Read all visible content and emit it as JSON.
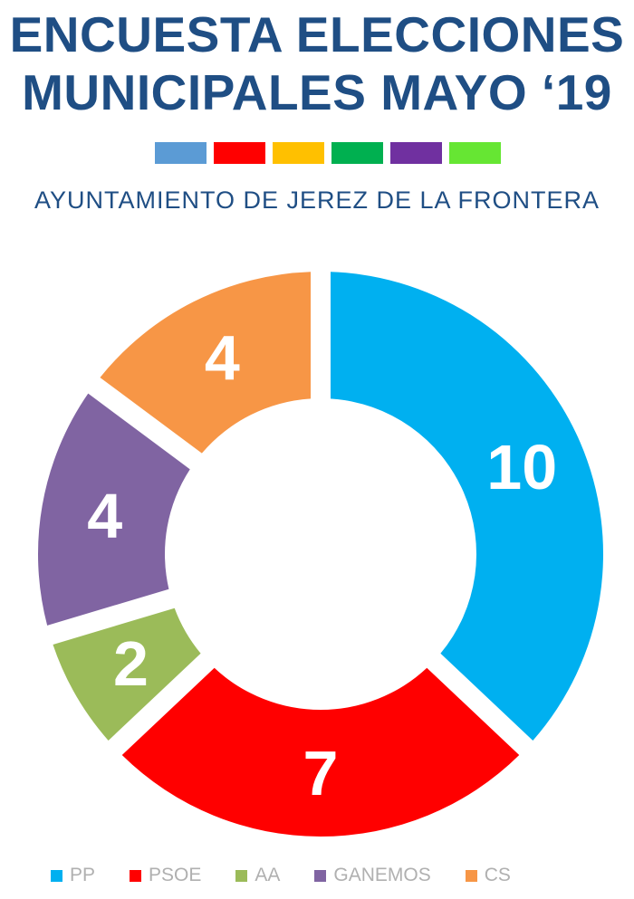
{
  "header": {
    "title_line1": "ENCUESTA ELECCIONES",
    "title_line2": "MUNICIPALES MAYO ‘19",
    "subtitle": "AYUNTAMIENTO DE JEREZ DE LA FRONTERA",
    "swatch_colors": [
      "#5b9bd5",
      "#ff0000",
      "#ffc000",
      "#00b050",
      "#7030a0",
      "#66e633"
    ]
  },
  "chart_data": {
    "type": "pie",
    "donut": true,
    "categories": [
      "PP",
      "PSOE",
      "AA",
      "GANEMOS",
      "CS"
    ],
    "values": [
      10,
      7,
      2,
      4,
      4
    ],
    "colors": [
      "#00b0f0",
      "#ff0000",
      "#9bbb59",
      "#8064a2",
      "#f79646"
    ],
    "title": "",
    "legend_position": "bottom",
    "data_labels": true
  }
}
